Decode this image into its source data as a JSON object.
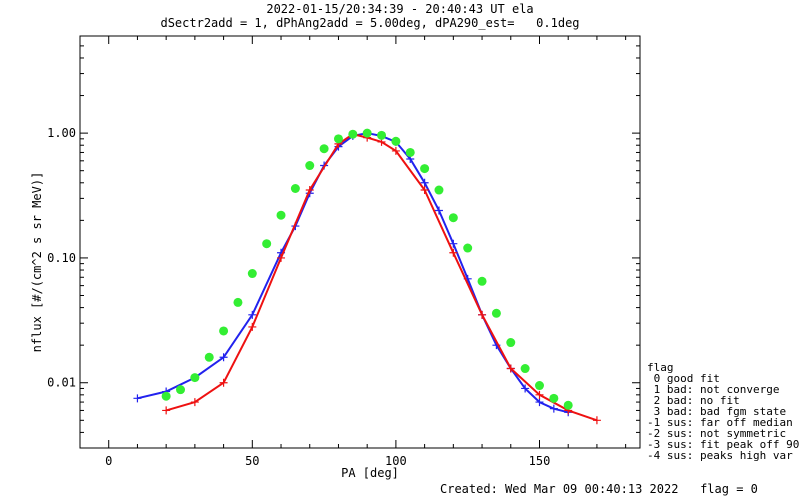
{
  "chart_data": {
    "type": "line",
    "title": "2022-01-15/20:34:39 - 20:40:43 UT ela",
    "subtitle": "dSectr2add = 1, dPhAng2add = 5.00deg, dPA290_est=   0.1deg",
    "xlabel": "PA [deg]",
    "ylabel": "nflux [#/(cm^2 s sr MeV)]",
    "xlim": [
      -10,
      185
    ],
    "ylim": [
      0.003,
      6.0
    ],
    "yscale": "log",
    "x_ticks": [
      0,
      50,
      100,
      150
    ],
    "y_ticks": [
      {
        "value": 0.01,
        "label": "0.01"
      },
      {
        "value": 0.1,
        "label": "0.10"
      },
      {
        "value": 1.0,
        "label": "1.00"
      }
    ],
    "grid": false,
    "series": [
      {
        "color": "#2222ee",
        "marker": "plus",
        "x": [
          10,
          20,
          30,
          40,
          50,
          60,
          65,
          70,
          75,
          80,
          85,
          90,
          95,
          100,
          105,
          110,
          115,
          120,
          125,
          130,
          135,
          140,
          145,
          150,
          155,
          160
        ],
        "y": [
          0.0075,
          0.0085,
          0.011,
          0.016,
          0.035,
          0.11,
          0.18,
          0.33,
          0.55,
          0.78,
          0.95,
          1.0,
          0.95,
          0.85,
          0.62,
          0.4,
          0.24,
          0.13,
          0.068,
          0.035,
          0.02,
          0.013,
          0.009,
          0.007,
          0.0062,
          0.0058
        ]
      },
      {
        "color": "#ee1111",
        "marker": "plus",
        "x": [
          20,
          30,
          40,
          50,
          60,
          70,
          80,
          85,
          90,
          95,
          100,
          110,
          120,
          130,
          140,
          150,
          160,
          170
        ],
        "y": [
          0.006,
          0.007,
          0.01,
          0.028,
          0.1,
          0.35,
          0.82,
          0.98,
          0.92,
          0.85,
          0.72,
          0.35,
          0.11,
          0.035,
          0.013,
          0.008,
          0.006,
          0.005
        ]
      },
      {
        "color": "#33ee33",
        "marker": "dot",
        "x": [
          20,
          25,
          30,
          35,
          40,
          45,
          50,
          55,
          60,
          65,
          70,
          75,
          80,
          85,
          90,
          95,
          100,
          105,
          110,
          115,
          120,
          125,
          130,
          135,
          140,
          145,
          150,
          155,
          160
        ],
        "y": [
          0.0078,
          0.0088,
          0.011,
          0.016,
          0.026,
          0.044,
          0.075,
          0.13,
          0.22,
          0.36,
          0.55,
          0.75,
          0.9,
          0.98,
          1.0,
          0.96,
          0.86,
          0.7,
          0.52,
          0.35,
          0.21,
          0.12,
          0.065,
          0.036,
          0.021,
          0.013,
          0.0095,
          0.0075,
          0.0066
        ]
      }
    ],
    "legend": {
      "placement": "right",
      "title": "flag",
      "entries": [
        " 0 good fit",
        " 1 bad: not converge",
        " 2 bad: no fit",
        " 3 bad: bad fgm state",
        "-1 sus: far off median",
        "-2 sus: not symmetric",
        "-3 sus: fit peak off 90",
        "-4 sus: peaks high var"
      ]
    },
    "footer": "Created: Wed Mar 09 00:40:13 2022   flag = 0"
  }
}
